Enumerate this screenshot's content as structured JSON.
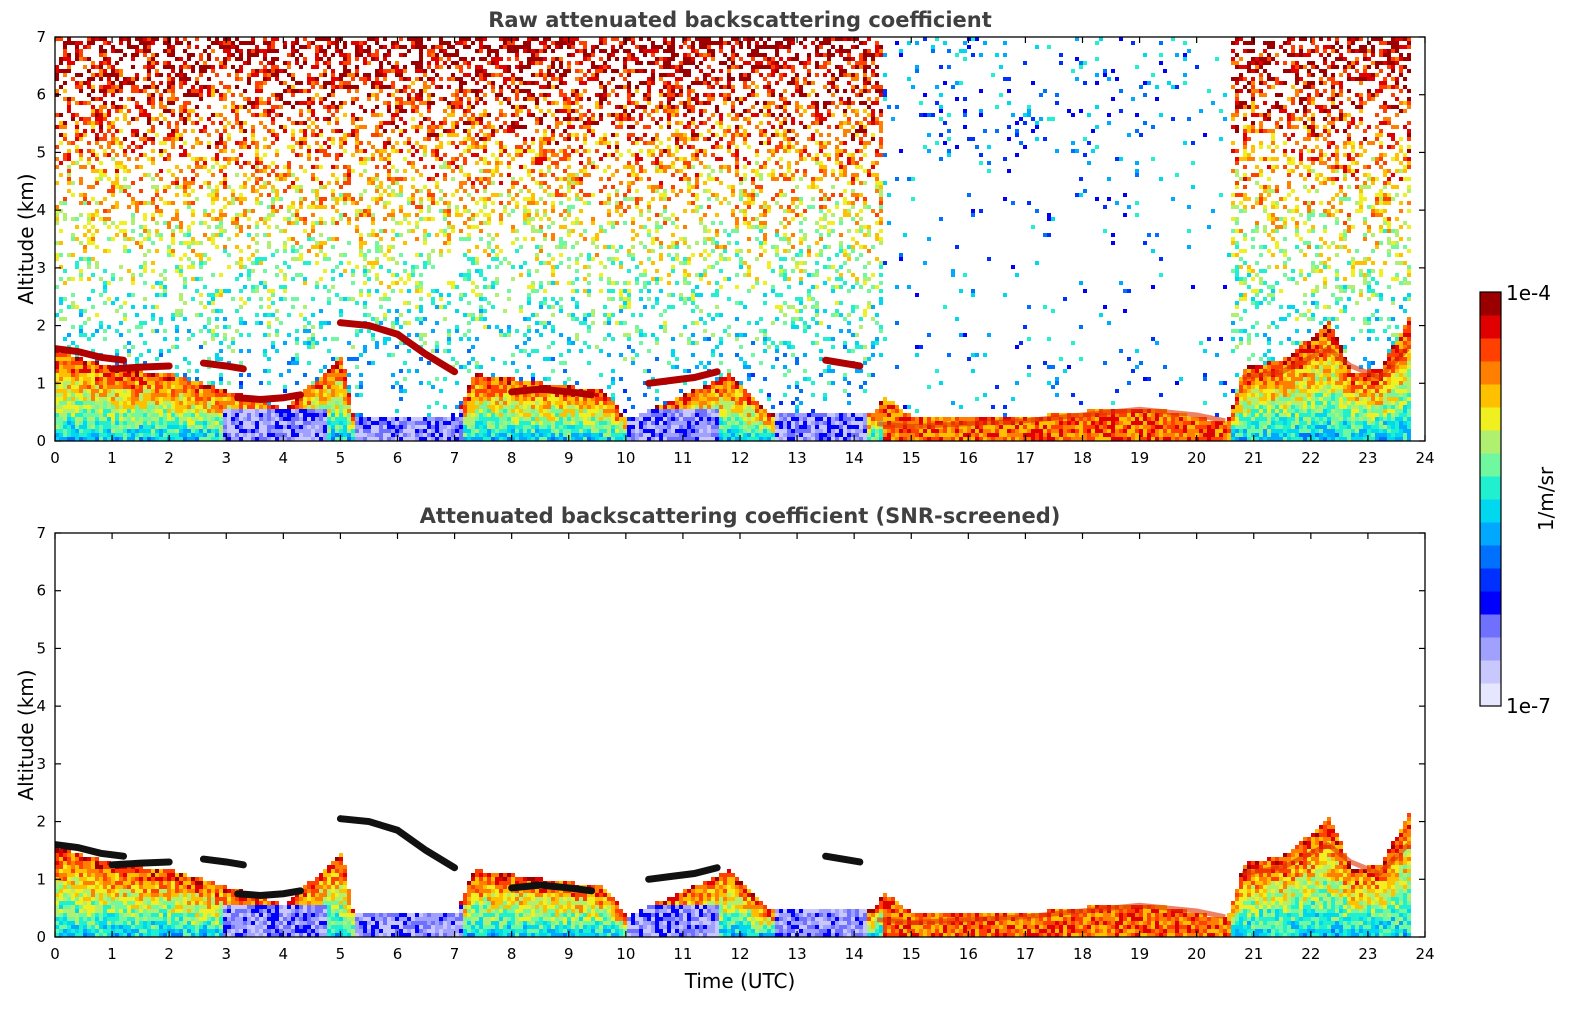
{
  "chart_data": [
    {
      "type": "heatmap",
      "title": "Raw attenuated backscattering coefficient",
      "xlabel": "",
      "ylabel": "Altitude (km)",
      "xlim": [
        0,
        24
      ],
      "ylim": [
        0,
        7
      ],
      "x_ticks": [
        "0",
        "1",
        "2",
        "3",
        "4",
        "5",
        "6",
        "7",
        "8",
        "9",
        "10",
        "11",
        "12",
        "13",
        "14",
        "15",
        "16",
        "17",
        "18",
        "19",
        "20",
        "21",
        "22",
        "23",
        "24"
      ],
      "y_ticks": [
        "0",
        "1",
        "2",
        "3",
        "4",
        "5",
        "6",
        "7"
      ],
      "screened": false,
      "layer_features": [
        {
          "kind": "cloud",
          "t": [
            0.0,
            0.4,
            0.8,
            1.2
          ],
          "alt": [
            1.6,
            1.55,
            1.45,
            1.4
          ]
        },
        {
          "kind": "cloud",
          "t": [
            1.0,
            1.5,
            2.0
          ],
          "alt": [
            1.25,
            1.28,
            1.3
          ]
        },
        {
          "kind": "cloud",
          "t": [
            2.6,
            3.0,
            3.3
          ],
          "alt": [
            1.35,
            1.3,
            1.25
          ]
        },
        {
          "kind": "cloud",
          "t": [
            3.2,
            3.6,
            4.0,
            4.3
          ],
          "alt": [
            0.75,
            0.72,
            0.75,
            0.8
          ]
        },
        {
          "kind": "cloud",
          "t": [
            5.0,
            5.5,
            6.0,
            6.5,
            7.0
          ],
          "alt": [
            2.05,
            2.0,
            1.85,
            1.5,
            1.2
          ]
        },
        {
          "kind": "cloud",
          "t": [
            8.0,
            8.5,
            9.0,
            9.4
          ],
          "alt": [
            0.85,
            0.9,
            0.85,
            0.8
          ]
        },
        {
          "kind": "cloud",
          "t": [
            10.4,
            10.8,
            11.2,
            11.6
          ],
          "alt": [
            1.0,
            1.05,
            1.1,
            1.2
          ]
        },
        {
          "kind": "cloud",
          "t": [
            13.5,
            13.8,
            14.1
          ],
          "alt": [
            1.4,
            1.35,
            1.3
          ]
        },
        {
          "kind": "boundary",
          "t": [
            14.4,
            15,
            16,
            17,
            18,
            19,
            20,
            20.5
          ],
          "alt": [
            0.3,
            0.25,
            0.3,
            0.35,
            0.45,
            0.55,
            0.45,
            0.35
          ]
        },
        {
          "kind": "boundary",
          "t": [
            20.8,
            21.5,
            22.3,
            22.7,
            23.2,
            23.7
          ],
          "alt": [
            1.1,
            1.2,
            1.6,
            1.3,
            1.1,
            1.6
          ]
        }
      ]
    },
    {
      "type": "heatmap",
      "title": "Attenuated backscattering coefficient (SNR-screened)",
      "xlabel": "Time (UTC)",
      "ylabel": "Altitude (km)",
      "xlim": [
        0,
        24
      ],
      "ylim": [
        0,
        7
      ],
      "x_ticks": [
        "0",
        "1",
        "2",
        "3",
        "4",
        "5",
        "6",
        "7",
        "8",
        "9",
        "10",
        "11",
        "12",
        "13",
        "14",
        "15",
        "16",
        "17",
        "18",
        "19",
        "20",
        "21",
        "22",
        "23",
        "24"
      ],
      "y_ticks": [
        "0",
        "1",
        "2",
        "3",
        "4",
        "5",
        "6",
        "7"
      ],
      "screened": true
    }
  ],
  "colorbar": {
    "label": "1/m/sr",
    "max_label": "1e-4",
    "min_label": "1e-7",
    "colors": [
      "#e6e6ff",
      "#c8c8ff",
      "#a0a0ff",
      "#7070ff",
      "#0000ff",
      "#0030ff",
      "#0070ff",
      "#00a8ff",
      "#00d8f0",
      "#20f0d0",
      "#70f8a0",
      "#b0f070",
      "#f0f020",
      "#ffc000",
      "#ff8000",
      "#ff4000",
      "#e00000",
      "#9a0000"
    ]
  }
}
